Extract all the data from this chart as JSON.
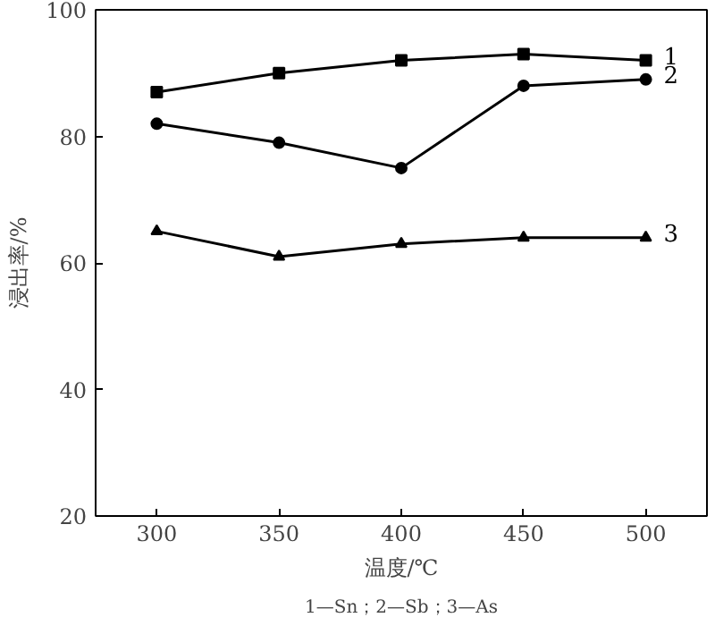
{
  "chart_data": {
    "type": "line",
    "xlabel": "温度/℃",
    "ylabel": "浸出率/%",
    "x": [
      300,
      350,
      400,
      450,
      500
    ],
    "series": [
      {
        "name": "1",
        "color": "#000000",
        "marker": "square",
        "values": [
          87,
          90,
          92,
          93,
          92
        ]
      },
      {
        "name": "2",
        "color": "#000000",
        "marker": "circle",
        "values": [
          82,
          79,
          75,
          88,
          89
        ]
      },
      {
        "name": "3",
        "color": "#000000",
        "marker": "triangle",
        "values": [
          65,
          61,
          63,
          64,
          64
        ]
      }
    ],
    "xlim": [
      275,
      525
    ],
    "ylim": [
      20,
      100
    ],
    "xticks": [
      300,
      350,
      400,
      450,
      500
    ],
    "yticks": [
      20,
      40,
      60,
      80,
      100
    ],
    "grid": false,
    "legend": false,
    "line_style": "solid",
    "annotations": [
      "1—Sn；2—Sb；3—As"
    ]
  }
}
